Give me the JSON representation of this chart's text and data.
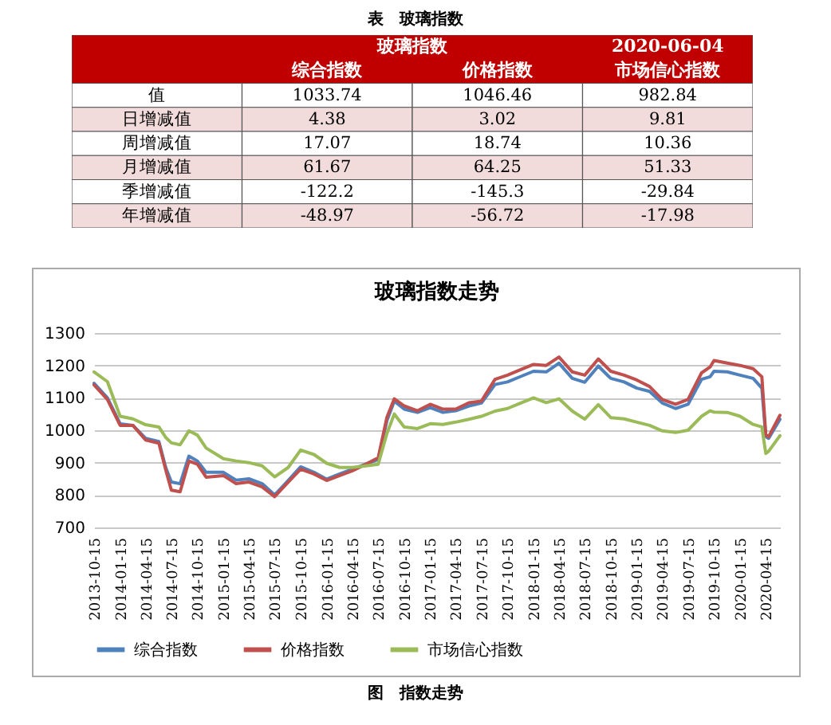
{
  "chart_data": [
    {
      "type": "other",
      "title": "表　玻璃指数",
      "annotations": [
        "玻璃指数",
        "2020-06-04"
      ],
      "categories": [
        "综合指数",
        "价格指数",
        "市场信心指数"
      ],
      "y_categories": [
        "值",
        "日增减值",
        "周增减值",
        "月增减值",
        "季增减值",
        "年增减值"
      ],
      "cell_labels": [
        [
          "1033.74",
          "1046.46",
          "982.84"
        ],
        [
          "4.38",
          "3.02",
          "9.81"
        ],
        [
          "17.07",
          "18.74",
          "10.36"
        ],
        [
          "61.67",
          "64.25",
          "51.33"
        ],
        [
          "-122.2",
          "-145.3",
          "-29.84"
        ],
        [
          "-48.97",
          "-56.72",
          "-17.98"
        ]
      ]
    },
    {
      "type": "line",
      "title": "玻璃指数走势",
      "annotations": [
        "图　指数走势"
      ],
      "x": [
        "2013-10-15",
        "2013-12-01",
        "2014-01-15",
        "2014-03-01",
        "2014-04-15",
        "2014-06-01",
        "2014-06-25",
        "2014-07-15",
        "2014-08-15",
        "2014-09-15",
        "2014-10-15",
        "2014-11-15",
        "2015-01-15",
        "2015-03-01",
        "2015-04-15",
        "2015-06-01",
        "2015-07-15",
        "2015-09-01",
        "2015-10-15",
        "2015-12-01",
        "2016-01-15",
        "2016-03-01",
        "2016-04-15",
        "2016-06-01",
        "2016-07-15",
        "2016-08-15",
        "2016-09-10",
        "2016-10-15",
        "2016-12-01",
        "2017-01-15",
        "2017-03-01",
        "2017-04-15",
        "2017-06-01",
        "2017-07-15",
        "2017-09-01",
        "2017-10-15",
        "2017-12-01",
        "2018-01-15",
        "2018-03-01",
        "2018-04-15",
        "2018-06-01",
        "2018-07-15",
        "2018-09-01",
        "2018-10-15",
        "2018-12-01",
        "2019-01-15",
        "2019-03-01",
        "2019-04-15",
        "2019-06-01",
        "2019-07-15",
        "2019-09-01",
        "2019-10-01",
        "2019-10-15",
        "2019-12-01",
        "2020-01-15",
        "2020-03-01",
        "2020-04-01",
        "2020-04-15",
        "2020-04-25",
        "2020-06-04"
      ],
      "series": [
        {
          "name": "综合指数",
          "color": "#4f81bd",
          "values": [
            1145,
            1100,
            1020,
            1015,
            975,
            965,
            885,
            840,
            835,
            920,
            905,
            870,
            870,
            846,
            850,
            835,
            800,
            845,
            887,
            870,
            849,
            865,
            880,
            895,
            910,
            1030,
            1090,
            1065,
            1055,
            1070,
            1055,
            1060,
            1075,
            1084,
            1141,
            1149,
            1166,
            1182,
            1180,
            1207,
            1160,
            1148,
            1198,
            1160,
            1149,
            1130,
            1120,
            1084,
            1067,
            1080,
            1157,
            1165,
            1182,
            1180,
            1170,
            1160,
            1130,
            980,
            975,
            1034
          ]
        },
        {
          "name": "价格指数",
          "color": "#c0504d",
          "values": [
            1140,
            1095,
            1015,
            1015,
            970,
            960,
            878,
            815,
            810,
            905,
            895,
            855,
            860,
            835,
            840,
            825,
            795,
            840,
            880,
            865,
            845,
            860,
            875,
            895,
            915,
            1040,
            1097,
            1075,
            1060,
            1080,
            1065,
            1065,
            1085,
            1090,
            1157,
            1170,
            1187,
            1203,
            1200,
            1226,
            1180,
            1170,
            1220,
            1182,
            1170,
            1155,
            1135,
            1095,
            1080,
            1095,
            1177,
            1195,
            1215,
            1207,
            1200,
            1190,
            1165,
            985,
            980,
            1046
          ]
        },
        {
          "name": "市场信心指数",
          "color": "#9bbb59",
          "values": [
            1180,
            1150,
            1043,
            1035,
            1017,
            1010,
            978,
            961,
            955,
            998,
            985,
            945,
            912,
            905,
            900,
            890,
            856,
            885,
            939,
            925,
            898,
            885,
            885,
            890,
            895,
            990,
            1050,
            1010,
            1005,
            1020,
            1018,
            1025,
            1034,
            1043,
            1059,
            1067,
            1084,
            1100,
            1085,
            1097,
            1059,
            1034,
            1079,
            1039,
            1035,
            1025,
            1015,
            998,
            993,
            1000,
            1043,
            1060,
            1056,
            1055,
            1043,
            1018,
            1010,
            928,
            935,
            983
          ]
        }
      ],
      "xlim": [
        "2013-10-15",
        "2020-06-04"
      ],
      "ylim": [
        700,
        1300
      ],
      "xticks": [
        "2013-10-15",
        "2014-01-15",
        "2014-04-15",
        "2014-07-15",
        "2014-10-15",
        "2015-01-15",
        "2015-04-15",
        "2015-07-15",
        "2015-10-15",
        "2016-01-15",
        "2016-04-15",
        "2016-07-15",
        "2016-10-15",
        "2017-01-15",
        "2017-04-15",
        "2017-07-15",
        "2017-10-15",
        "2018-01-15",
        "2018-04-15",
        "2018-07-15",
        "2018-10-15",
        "2019-01-15",
        "2019-04-15",
        "2019-07-15",
        "2019-10-15",
        "2020-01-15",
        "2020-04-15"
      ],
      "yticks": [
        700,
        800,
        900,
        1000,
        1100,
        1200,
        1300
      ],
      "grid": "y",
      "legend": "bottom"
    }
  ]
}
